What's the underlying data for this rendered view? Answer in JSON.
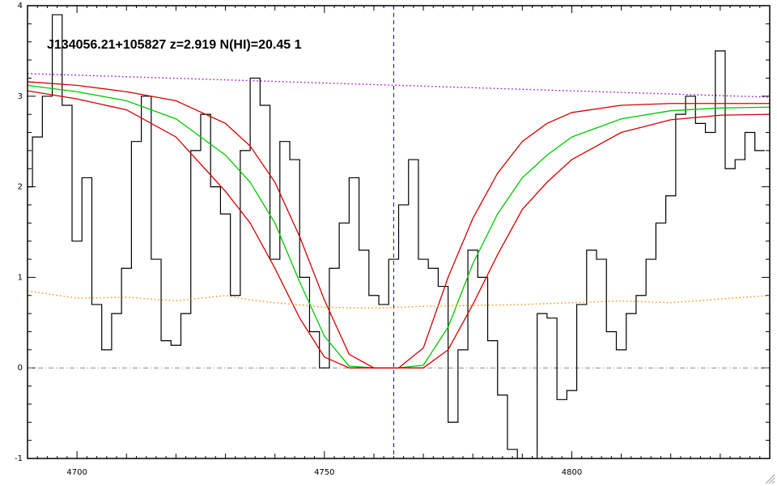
{
  "chart_data": {
    "type": "line",
    "title": "J134056.21+105827 z=2.919 N(HI)=20.45 1",
    "xlabel": "",
    "ylabel": "",
    "xlim": [
      4690,
      4840
    ],
    "ylim": [
      -1,
      4
    ],
    "x_ticks": [
      4700,
      4750,
      4800
    ],
    "y_ticks": [
      -1,
      0,
      1,
      2,
      3,
      4
    ],
    "grid": false,
    "colors": {
      "flux": "#000000",
      "fit": "#00c800",
      "fit_bounds": "#d40000",
      "continuum": "#9a00d0",
      "error": "#ff8c00",
      "zero_line": "#888888",
      "center_line": "#0000cc"
    },
    "center_wavelength": 4764,
    "zero_level": 0,
    "series": [
      {
        "style": "histogram",
        "x": [
          4690,
          4692,
          4694,
          4696,
          4698,
          4700,
          4702,
          4704,
          4706,
          4708,
          4710,
          4712,
          4714,
          4716,
          4718,
          4720,
          4722,
          4724,
          4726,
          4728,
          4730,
          4732,
          4734,
          4736,
          4738,
          4740,
          4742,
          4744,
          4746,
          4748,
          4750,
          4752,
          4754,
          4756,
          4758,
          4760,
          4762,
          4764,
          4766,
          4768,
          4770,
          4772,
          4774,
          4776,
          4778,
          4780,
          4782,
          4784,
          4786,
          4788,
          4790,
          4792,
          4794,
          4796,
          4798,
          4800,
          4802,
          4804,
          4806,
          4808,
          4810,
          4812,
          4814,
          4816,
          4818,
          4820,
          4822,
          4824,
          4826,
          4828,
          4830,
          4832,
          4834,
          4836,
          4838
        ],
        "values": [
          2.0,
          2.55,
          3.0,
          3.9,
          2.9,
          1.4,
          2.1,
          0.7,
          0.2,
          0.6,
          1.1,
          2.5,
          3.0,
          1.2,
          0.3,
          0.25,
          0.6,
          2.4,
          2.8,
          2.0,
          1.7,
          0.8,
          2.4,
          3.2,
          2.9,
          1.2,
          2.5,
          2.3,
          1.0,
          0.4,
          0.0,
          1.1,
          1.6,
          2.1,
          1.3,
          0.8,
          0.7,
          1.2,
          1.8,
          2.3,
          1.2,
          1.1,
          0.9,
          -0.6,
          0.2,
          1.3,
          1.0,
          0.3,
          -0.3,
          -0.9,
          -1.0,
          -1.0,
          0.6,
          0.55,
          -0.35,
          -0.25,
          0.7,
          1.3,
          1.2,
          0.4,
          0.2,
          0.6,
          0.8,
          1.2,
          1.6,
          1.9,
          2.8,
          3.0,
          2.7,
          2.6,
          3.5,
          2.2,
          2.3,
          2.6,
          2.4
        ]
      },
      {
        "name": "fit",
        "x": [
          4690,
          4700,
          4710,
          4720,
          4730,
          4735,
          4740,
          4745,
          4750,
          4755,
          4760,
          4765,
          4770,
          4775,
          4780,
          4785,
          4790,
          4795,
          4800,
          4810,
          4820,
          4830,
          4840
        ],
        "values": [
          3.12,
          3.05,
          2.95,
          2.75,
          2.35,
          2.05,
          1.6,
          0.95,
          0.35,
          0.02,
          0.0,
          0.0,
          0.03,
          0.45,
          1.15,
          1.7,
          2.1,
          2.35,
          2.55,
          2.75,
          2.84,
          2.87,
          2.88
        ]
      },
      {
        "name": "fit-upper",
        "x": [
          4690,
          4700,
          4710,
          4720,
          4730,
          4735,
          4740,
          4745,
          4750,
          4755,
          4760,
          4765,
          4770,
          4775,
          4780,
          4785,
          4790,
          4795,
          4800,
          4810,
          4820,
          4830,
          4840
        ],
        "values": [
          3.16,
          3.12,
          3.05,
          2.95,
          2.7,
          2.45,
          2.05,
          1.45,
          0.75,
          0.15,
          0.0,
          0.0,
          0.22,
          1.0,
          1.65,
          2.15,
          2.5,
          2.7,
          2.82,
          2.9,
          2.92,
          2.92,
          2.92
        ]
      },
      {
        "name": "fit-lower",
        "x": [
          4690,
          4700,
          4710,
          4720,
          4730,
          4735,
          4740,
          4745,
          4750,
          4755,
          4760,
          4765,
          4770,
          4775,
          4780,
          4785,
          4790,
          4795,
          4800,
          4810,
          4820,
          4830,
          4840
        ],
        "values": [
          3.06,
          2.97,
          2.85,
          2.55,
          1.95,
          1.6,
          1.1,
          0.55,
          0.12,
          0.0,
          0.0,
          0.0,
          0.0,
          0.2,
          0.7,
          1.25,
          1.75,
          2.05,
          2.3,
          2.6,
          2.74,
          2.79,
          2.8
        ]
      },
      {
        "name": "continuum",
        "style": "dotted",
        "x": [
          4690,
          4840
        ],
        "values": [
          3.25,
          2.99
        ]
      },
      {
        "name": "error",
        "style": "dotted",
        "x": [
          4690,
          4700,
          4710,
          4720,
          4730,
          4735,
          4740,
          4750,
          4760,
          4770,
          4780,
          4790,
          4800,
          4810,
          4820,
          4830,
          4840
        ],
        "values": [
          0.85,
          0.77,
          0.78,
          0.74,
          0.8,
          0.75,
          0.72,
          0.67,
          0.66,
          0.68,
          0.69,
          0.7,
          0.72,
          0.74,
          0.72,
          0.76,
          0.8
        ]
      }
    ]
  }
}
